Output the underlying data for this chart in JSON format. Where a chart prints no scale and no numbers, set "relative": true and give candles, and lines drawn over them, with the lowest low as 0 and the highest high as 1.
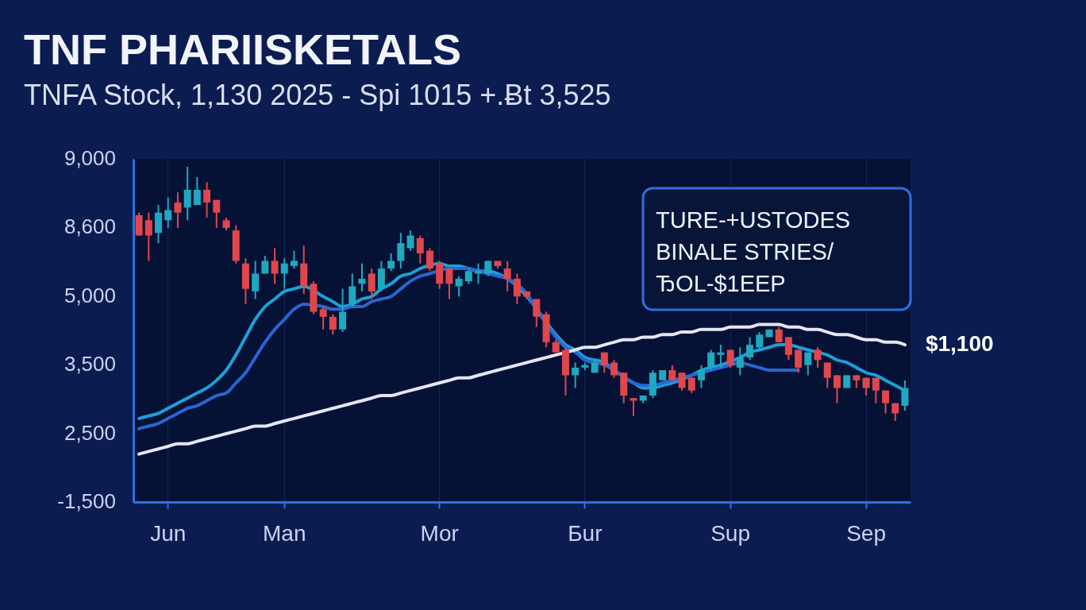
{
  "chart_data": {
    "type": "candlestick",
    "title": "TNF  PHARIISKETALS",
    "subtitle": "TNFA Stock, 1,130 2025 - Spi 1015 +.Ƀt 3,525",
    "annotations": [
      "9,000",
      "8,600",
      "5,000",
      "3,500",
      "2,500",
      "-1,500",
      "TURE-+USTODES",
      "BINALE STRIES/",
      "ЂOL-$1EEP",
      "$1,100"
    ],
    "relative": true,
    "categories": [
      null,
      null,
      null,
      "Jun",
      null,
      null,
      null,
      null,
      null,
      null,
      null,
      null,
      null,
      null,
      null,
      "Man",
      null,
      null,
      null,
      null,
      null,
      null,
      null,
      null,
      null,
      null,
      null,
      null,
      null,
      null,
      null,
      "Mor",
      null,
      null,
      null,
      null,
      null,
      null,
      null,
      null,
      null,
      null,
      null,
      null,
      null,
      null,
      "Бur",
      null,
      null,
      null,
      null,
      null,
      null,
      null,
      null,
      null,
      null,
      null,
      null,
      null,
      null,
      "Sup",
      null,
      null,
      null,
      null,
      null,
      null,
      null,
      null,
      null,
      null,
      null,
      null,
      null,
      "Sep",
      null,
      null,
      null,
      null
    ],
    "ohlc": [
      [
        0.81,
        0.82,
        0.73,
        0.73
      ],
      [
        0.79,
        0.82,
        0.63,
        0.73
      ],
      [
        0.74,
        0.85,
        0.7,
        0.82
      ],
      [
        0.79,
        0.88,
        0.76,
        0.83
      ],
      [
        0.86,
        0.9,
        0.76,
        0.82
      ],
      [
        0.84,
        1.0,
        0.79,
        0.91
      ],
      [
        0.85,
        0.96,
        0.85,
        0.91
      ],
      [
        0.91,
        0.94,
        0.8,
        0.86
      ],
      [
        0.87,
        0.87,
        0.76,
        0.82
      ],
      [
        0.79,
        0.8,
        0.75,
        0.76
      ],
      [
        0.75,
        0.77,
        0.62,
        0.63
      ],
      [
        0.62,
        0.64,
        0.46,
        0.52
      ],
      [
        0.51,
        0.63,
        0.48,
        0.58
      ],
      [
        0.58,
        0.65,
        0.58,
        0.63
      ],
      [
        0.63,
        0.68,
        0.54,
        0.58
      ],
      [
        0.58,
        0.64,
        0.52,
        0.62
      ],
      [
        0.61,
        0.67,
        0.6,
        0.63
      ],
      [
        0.62,
        0.69,
        0.5,
        0.53
      ],
      [
        0.54,
        0.55,
        0.42,
        0.43
      ],
      [
        0.44,
        0.45,
        0.36,
        0.41
      ],
      [
        0.41,
        0.42,
        0.34,
        0.36
      ],
      [
        0.36,
        0.52,
        0.35,
        0.43
      ],
      [
        0.46,
        0.58,
        0.45,
        0.53
      ],
      [
        0.54,
        0.62,
        0.51,
        0.56
      ],
      [
        0.58,
        0.6,
        0.48,
        0.51
      ],
      [
        0.52,
        0.63,
        0.51,
        0.6
      ],
      [
        0.6,
        0.66,
        0.59,
        0.63
      ],
      [
        0.63,
        0.74,
        0.6,
        0.7
      ],
      [
        0.68,
        0.75,
        0.67,
        0.73
      ],
      [
        0.72,
        0.73,
        0.62,
        0.66
      ],
      [
        0.67,
        0.68,
        0.59,
        0.6
      ],
      [
        0.62,
        0.63,
        0.52,
        0.54
      ],
      [
        0.6,
        0.6,
        0.48,
        0.54
      ],
      [
        0.53,
        0.57,
        0.49,
        0.56
      ],
      [
        0.55,
        0.6,
        0.54,
        0.59
      ],
      [
        0.58,
        0.62,
        0.54,
        0.59
      ],
      [
        0.58,
        0.63,
        0.57,
        0.63
      ],
      [
        0.63,
        0.63,
        0.6,
        0.61
      ],
      [
        0.6,
        0.63,
        0.51,
        0.56
      ],
      [
        0.56,
        0.58,
        0.46,
        0.49
      ],
      [
        0.51,
        0.51,
        0.48,
        0.49
      ],
      [
        0.48,
        0.48,
        0.37,
        0.41
      ],
      [
        0.42,
        0.43,
        0.29,
        0.31
      ],
      [
        0.31,
        0.32,
        0.27,
        0.27
      ],
      [
        0.28,
        0.29,
        0.1,
        0.18
      ],
      [
        0.18,
        0.23,
        0.13,
        0.21
      ],
      [
        0.21,
        0.23,
        0.2,
        0.22
      ],
      [
        0.19,
        0.24,
        0.19,
        0.23
      ],
      [
        0.27,
        0.27,
        0.19,
        0.22
      ],
      [
        0.23,
        0.24,
        0.17,
        0.18
      ],
      [
        0.19,
        0.19,
        0.07,
        0.1
      ],
      [
        0.09,
        0.09,
        0.02,
        0.08
      ],
      [
        0.08,
        0.1,
        0.07,
        0.1
      ],
      [
        0.1,
        0.2,
        0.09,
        0.19
      ],
      [
        0.16,
        0.2,
        0.16,
        0.2
      ],
      [
        0.2,
        0.22,
        0.16,
        0.16
      ],
      [
        0.19,
        0.19,
        0.12,
        0.13
      ],
      [
        0.17,
        0.17,
        0.11,
        0.12
      ],
      [
        0.16,
        0.22,
        0.13,
        0.2
      ],
      [
        0.21,
        0.28,
        0.2,
        0.27
      ],
      [
        0.26,
        0.3,
        0.21,
        0.27
      ],
      [
        0.28,
        0.28,
        0.21,
        0.22
      ],
      [
        0.21,
        0.29,
        0.18,
        0.25
      ],
      [
        0.25,
        0.33,
        0.24,
        0.3
      ],
      [
        0.29,
        0.35,
        0.28,
        0.34
      ],
      [
        0.33,
        0.36,
        0.33,
        0.36
      ],
      [
        0.36,
        0.37,
        0.31,
        0.31
      ],
      [
        0.33,
        0.33,
        0.24,
        0.26
      ],
      [
        0.28,
        0.28,
        0.19,
        0.21
      ],
      [
        0.22,
        0.27,
        0.18,
        0.27
      ],
      [
        0.28,
        0.29,
        0.21,
        0.24
      ],
      [
        0.23,
        0.23,
        0.13,
        0.17
      ],
      [
        0.18,
        0.18,
        0.07,
        0.13
      ],
      [
        0.13,
        0.18,
        0.13,
        0.18
      ],
      [
        0.18,
        0.18,
        0.13,
        0.16
      ],
      [
        0.17,
        0.17,
        0.1,
        0.13
      ],
      [
        0.17,
        0.17,
        0.07,
        0.12
      ],
      [
        0.12,
        0.12,
        0.03,
        0.07
      ],
      [
        0.07,
        0.07,
        0.0,
        0.03
      ],
      [
        0.06,
        0.16,
        0.04,
        0.13
      ]
    ],
    "colors": [
      "#e0474c",
      "#e0474c",
      "#1fa8c0",
      "#1fa8c0",
      "#e0474c",
      "#1fa8c0",
      "#1fa8c0",
      "#e0474c",
      "#e0474c",
      "#e0474c",
      "#e0474c",
      "#e0474c",
      "#1fa8c0",
      "#1fa8c0",
      "#e0474c",
      "#1fa8c0",
      "#1fa8c0",
      "#e0474c",
      "#e0474c",
      "#e0474c",
      "#e0474c",
      "#1fa8c0",
      "#1fa8c0",
      "#1fa8c0",
      "#e0474c",
      "#1fa8c0",
      "#1fa8c0",
      "#1fa8c0",
      "#1fa8c0",
      "#e0474c",
      "#e0474c",
      "#e0474c",
      "#e0474c",
      "#1fa8c0",
      "#1fa8c0",
      "#1fa8c0",
      "#1fa8c0",
      "#e0474c",
      "#e0474c",
      "#e0474c",
      "#e0474c",
      "#e0474c",
      "#e0474c",
      "#e0474c",
      "#e0474c",
      "#1fa8c0",
      "#1fa8c0",
      "#1fa8c0",
      "#e0474c",
      "#e0474c",
      "#e0474c",
      "#e0474c",
      "#1fa8c0",
      "#1fa8c0",
      "#1fa8c0",
      "#e0474c",
      "#e0474c",
      "#e0474c",
      "#1fa8c0",
      "#1fa8c0",
      "#1fa8c0",
      "#e0474c",
      "#1fa8c0",
      "#1fa8c0",
      "#1fa8c0",
      "#1fa8c0",
      "#e0474c",
      "#e0474c",
      "#e0474c",
      "#1fa8c0",
      "#e0474c",
      "#e0474c",
      "#e0474c",
      "#1fa8c0",
      "#e0474c",
      "#e0474c",
      "#e0474c",
      "#e0474c",
      "#e0474c",
      "#1fa8c0"
    ],
    "series": [
      {
        "type": "line",
        "color": "#1e9fd8",
        "values": [
          0.01,
          0.02,
          0.03,
          0.05,
          0.07,
          0.09,
          0.11,
          0.13,
          0.16,
          0.2,
          0.26,
          0.33,
          0.4,
          0.45,
          0.48,
          0.51,
          0.52,
          0.53,
          null,
          0.49,
          0.47,
          0.45,
          0.46,
          0.48,
          0.49,
          0.52,
          0.54,
          0.57,
          0.58,
          0.6,
          null,
          0.62,
          0.61,
          0.61,
          0.6,
          0.59,
          0.59,
          0.58,
          0.56,
          0.53,
          0.49,
          null,
          null,
          0.34,
          0.3,
          0.28,
          0.25,
          0.24,
          0.23,
          0.2,
          null,
          0.15,
          0.13,
          0.13,
          0.14,
          0.15,
          null,
          0.18,
          0.2,
          0.21,
          0.22,
          null,
          0.25,
          0.27,
          0.28,
          0.29,
          0.3,
          0.3,
          0.29,
          0.28,
          0.27,
          0.26,
          0.24,
          0.23,
          0.21,
          0.19,
          0.18,
          0.16,
          0.14,
          0.12
        ]
      },
      {
        "type": "line",
        "color": "#2a66d0",
        "values": [
          -0.03,
          -0.02,
          -0.01,
          0.01,
          0.03,
          0.05,
          0.06,
          0.08,
          0.1,
          0.11,
          0.15,
          0.19,
          0.25,
          0.31,
          0.36,
          0.4,
          0.44,
          0.46,
          null,
          0.45,
          0.44,
          0.44,
          0.45,
          0.45,
          0.47,
          0.48,
          0.49,
          0.52,
          0.55,
          0.57,
          0.58,
          null,
          0.6,
          0.6,
          0.6,
          0.59,
          0.58,
          0.57,
          0.56,
          null,
          0.5,
          0.44,
          null,
          0.33,
          0.29,
          0.27,
          0.24,
          0.23,
          0.22,
          0.2,
          null,
          0.15,
          0.14,
          0.14,
          0.15,
          0.16,
          null,
          0.18,
          0.19,
          0.2,
          0.21,
          0.22,
          0.23,
          0.22,
          0.21,
          0.2,
          0.2,
          0.2,
          0.2,
          null,
          null,
          null,
          null,
          null,
          null,
          null,
          null,
          null,
          null,
          null
        ]
      },
      {
        "type": "line",
        "color": "#e4e6f2",
        "values": [
          -0.13,
          -0.12,
          -0.11,
          -0.1,
          -0.09,
          -0.09,
          -0.08,
          -0.07,
          -0.06,
          -0.05,
          -0.04,
          -0.03,
          -0.02,
          -0.02,
          -0.01,
          0.0,
          0.01,
          0.02,
          0.03,
          0.04,
          0.05,
          0.06,
          0.07,
          0.08,
          0.09,
          0.1,
          0.1,
          0.11,
          0.12,
          0.13,
          0.14,
          0.15,
          0.16,
          0.17,
          0.17,
          0.18,
          0.19,
          0.2,
          0.21,
          0.22,
          0.23,
          0.24,
          0.25,
          0.26,
          null,
          0.28,
          0.29,
          0.29,
          0.3,
          0.31,
          0.32,
          0.32,
          0.33,
          0.33,
          0.34,
          0.34,
          0.35,
          0.35,
          0.36,
          0.36,
          0.36,
          0.37,
          0.37,
          0.37,
          0.38,
          0.38,
          0.38,
          0.37,
          0.37,
          0.36,
          0.36,
          0.35,
          0.34,
          0.34,
          0.33,
          0.32,
          0.32,
          0.31,
          0.31,
          0.3
        ]
      }
    ],
    "grid": "x",
    "marker": "none",
    "line_style": "solid"
  }
}
